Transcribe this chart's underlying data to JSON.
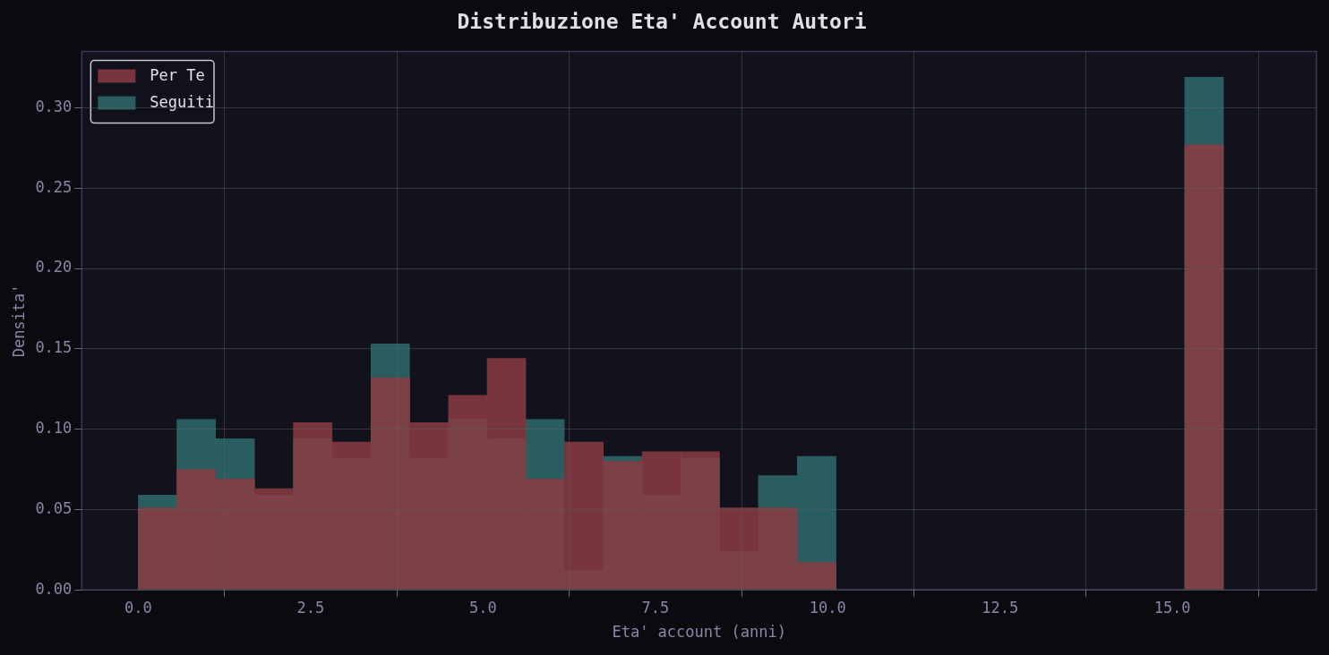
{
  "chart_data": {
    "type": "histogram",
    "title": "Distribuzione Eta' Account Autori",
    "xlabel": "Eta' account (anni)",
    "ylabel": "Densita'",
    "bins": [
      0,
      0.56,
      1.12,
      1.69,
      2.25,
      2.81,
      3.37,
      3.94,
      4.5,
      5.06,
      5.62,
      6.18,
      6.75,
      7.31,
      7.87,
      8.43,
      8.99,
      9.56,
      10.12,
      10.68,
      11.24,
      11.8,
      12.37,
      12.93,
      13.49,
      14.05,
      14.61,
      15.18,
      15.74
    ],
    "series": [
      {
        "name": "Per Te",
        "color": "#8b3c43",
        "values": [
          0.051,
          0.075,
          0.069,
          0.063,
          0.104,
          0.092,
          0.132,
          0.104,
          0.121,
          0.144,
          0.069,
          0.092,
          0.08,
          0.086,
          0.086,
          0.051,
          0.051,
          0.017,
          0,
          0,
          0,
          0,
          0,
          0,
          0,
          0,
          0,
          0.277
        ]
      },
      {
        "name": "Seguiti",
        "color": "#2e6b6b",
        "values": [
          0.059,
          0.106,
          0.094,
          0.059,
          0.094,
          0.082,
          0.153,
          0.082,
          0.106,
          0.094,
          0.106,
          0.012,
          0.083,
          0.059,
          0.082,
          0.024,
          0.071,
          0.083,
          0,
          0,
          0,
          0,
          0,
          0,
          0,
          0,
          0,
          0.319
        ]
      }
    ],
    "xlim": [
      -0.82,
      17.09
    ],
    "xticks": [
      {
        "value": 0,
        "label": "0.0"
      },
      {
        "value": 2.5,
        "label": "2.5"
      },
      {
        "value": 5,
        "label": "5.0"
      },
      {
        "value": 7.5,
        "label": "7.5"
      },
      {
        "value": 10,
        "label": "10.0"
      },
      {
        "value": 12.5,
        "label": "12.5"
      },
      {
        "value": 15,
        "label": "15.0"
      }
    ],
    "ylim": [
      0,
      0.335
    ],
    "yticks": [
      {
        "value": 0,
        "label": "0.00"
      },
      {
        "value": 0.05,
        "label": "0.05"
      },
      {
        "value": 0.1,
        "label": "0.10"
      },
      {
        "value": 0.15,
        "label": "0.15"
      },
      {
        "value": 0.2,
        "label": "0.20"
      },
      {
        "value": 0.25,
        "label": "0.25"
      },
      {
        "value": 0.3,
        "label": "0.30"
      }
    ],
    "grid": true,
    "legend": "top left"
  }
}
